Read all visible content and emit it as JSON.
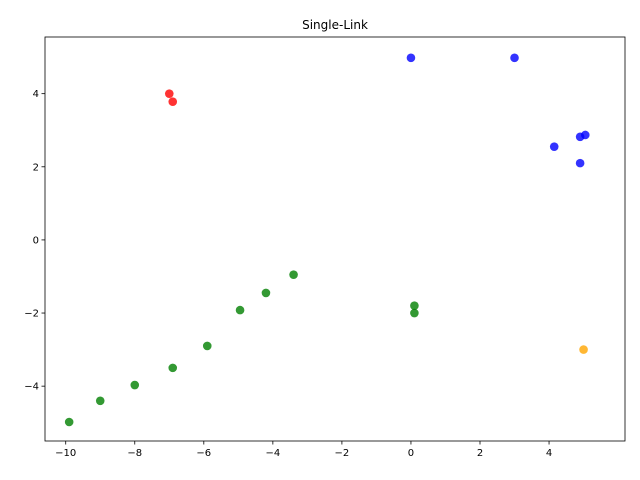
{
  "chart_data": {
    "type": "scatter",
    "title": "Single-Link",
    "xlabel": "",
    "ylabel": "",
    "xlim": [
      -10.6,
      6.2
    ],
    "ylim": [
      -5.5,
      5.55
    ],
    "xticks": [
      -10,
      -8,
      -6,
      -4,
      -2,
      0,
      2,
      4
    ],
    "yticks": [
      -4,
      -2,
      0,
      2,
      4
    ],
    "grid": false,
    "series": [
      {
        "color": "#0000ff",
        "points": [
          [
            0.0,
            4.98
          ],
          [
            3.0,
            4.98
          ],
          [
            4.15,
            2.55
          ],
          [
            4.9,
            2.82
          ],
          [
            5.05,
            2.87
          ],
          [
            4.9,
            2.1
          ]
        ]
      },
      {
        "color": "#ff0000",
        "points": [
          [
            -7.0,
            4.0
          ],
          [
            -6.9,
            3.78
          ]
        ]
      },
      {
        "color": "#008000",
        "points": [
          [
            -3.4,
            -0.95
          ],
          [
            -4.2,
            -1.45
          ],
          [
            -4.95,
            -1.92
          ],
          [
            -5.9,
            -2.9
          ],
          [
            -6.9,
            -3.5
          ],
          [
            -8.0,
            -3.97
          ],
          [
            -9.0,
            -4.4
          ],
          [
            -9.9,
            -4.98
          ],
          [
            0.1,
            -1.8
          ],
          [
            0.1,
            -2.0
          ]
        ]
      },
      {
        "color": "#ffa500",
        "points": [
          [
            5.0,
            -3.0
          ]
        ]
      }
    ]
  }
}
